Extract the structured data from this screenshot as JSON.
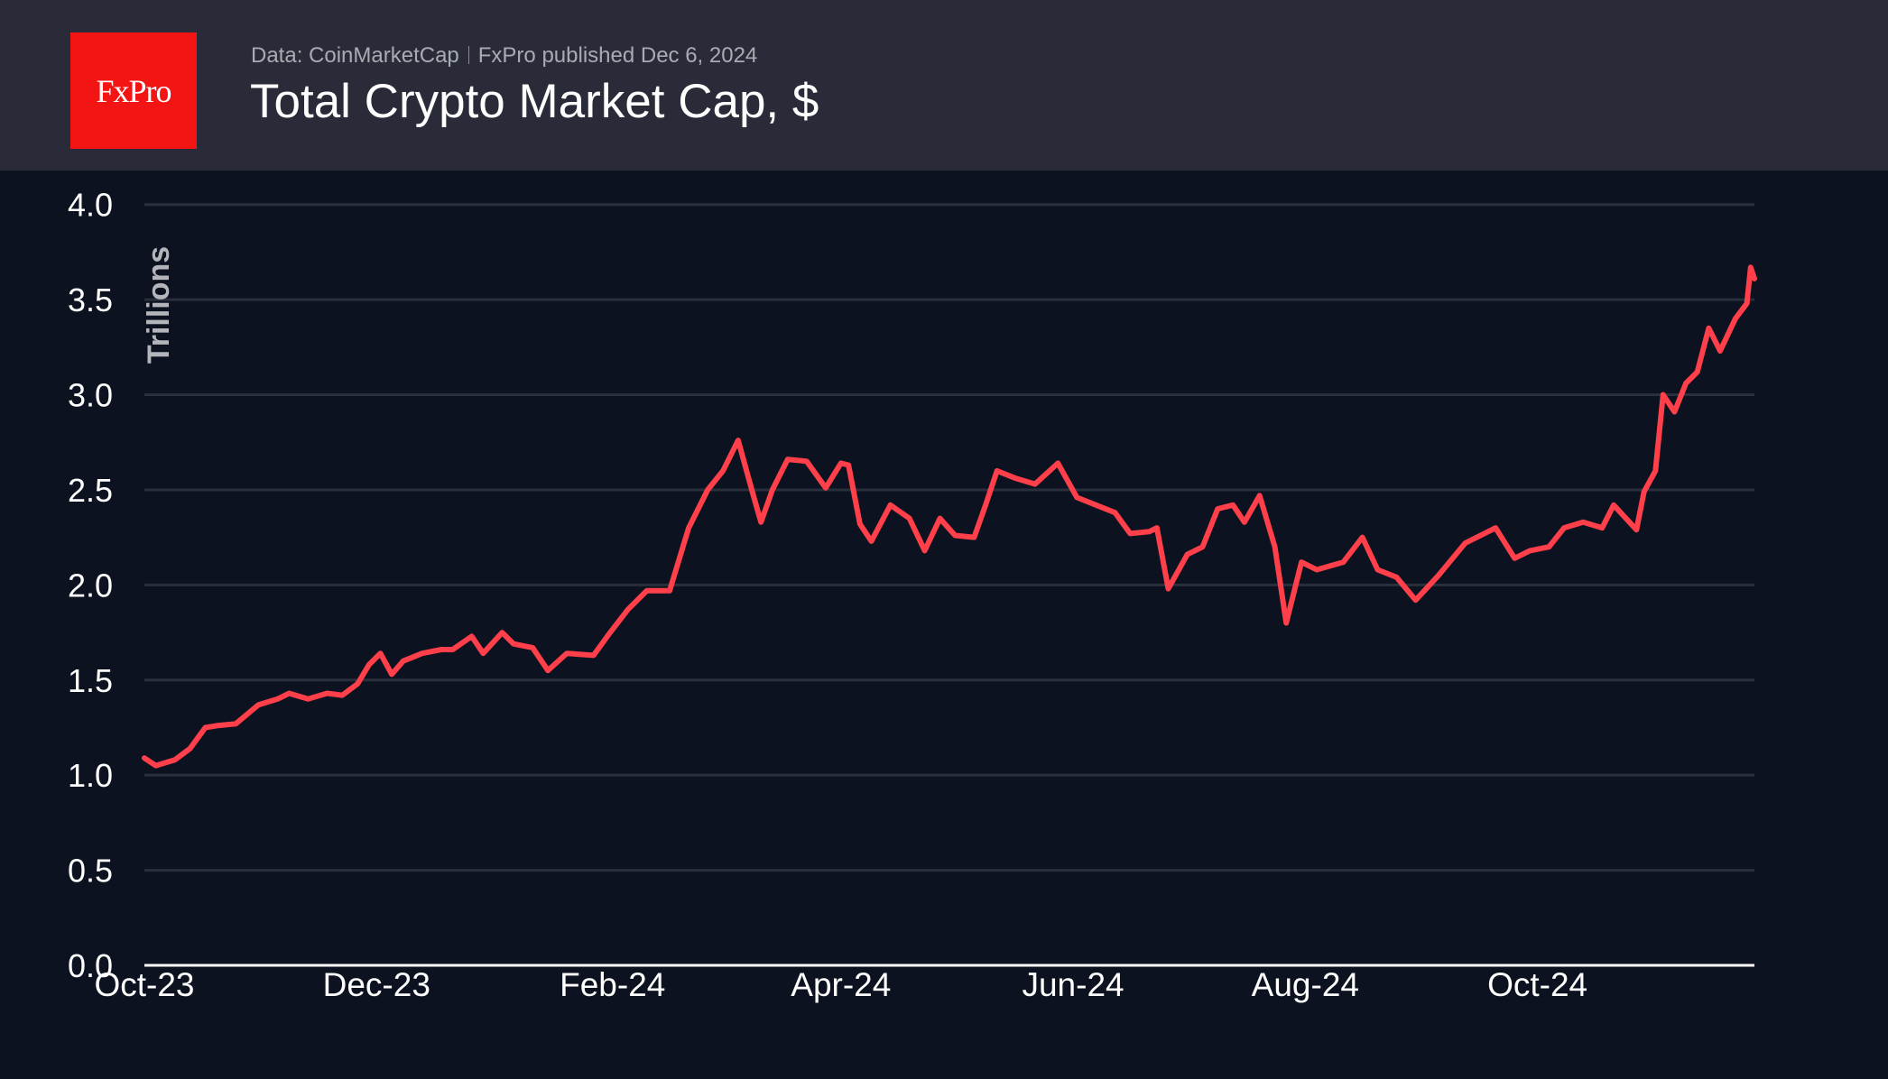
{
  "header": {
    "logo": "FxPro",
    "source": "Data: CoinMarketCap",
    "publisher": "FxPro published Dec 6, 2024",
    "title": "Total Crypto Market Cap, $"
  },
  "colors": {
    "line": "#ff3f4a",
    "background": "#0c1220",
    "header": "#292c38",
    "grid": "#2a2f3c",
    "logo": "#f31414"
  },
  "chart_data": {
    "type": "line",
    "title": "Total Crypto Market Cap, $",
    "ylabel": "Trillions",
    "xlabel": "",
    "ylim": [
      0,
      4
    ],
    "yticks": [
      "0.0",
      "0.5",
      "1.0",
      "1.5",
      "2.0",
      "2.5",
      "3.0",
      "3.5",
      "4.0"
    ],
    "xticks": [
      {
        "date": "2023-10-01",
        "label": "Oct-23"
      },
      {
        "date": "2023-12-01",
        "label": "Dec-23"
      },
      {
        "date": "2024-02-01",
        "label": "Feb-24"
      },
      {
        "date": "2024-04-01",
        "label": "Apr-24"
      },
      {
        "date": "2024-06-01",
        "label": "Jun-24"
      },
      {
        "date": "2024-08-01",
        "label": "Aug-24"
      },
      {
        "date": "2024-10-01",
        "label": "Oct-24"
      }
    ],
    "grid": true,
    "x": [
      "2023-10-01",
      "2023-10-04",
      "2023-10-09",
      "2023-10-13",
      "2023-10-17",
      "2023-10-20",
      "2023-10-25",
      "2023-10-31",
      "2023-11-05",
      "2023-11-08",
      "2023-11-13",
      "2023-11-18",
      "2023-11-22",
      "2023-11-26",
      "2023-11-29",
      "2023-12-02",
      "2023-12-05",
      "2023-12-08",
      "2023-12-13",
      "2023-12-18",
      "2023-12-21",
      "2023-12-26",
      "2023-12-29",
      "2024-01-03",
      "2024-01-06",
      "2024-01-11",
      "2024-01-15",
      "2024-01-20",
      "2024-01-27",
      "2024-01-31",
      "2024-02-05",
      "2024-02-10",
      "2024-02-16",
      "2024-02-21",
      "2024-02-26",
      "2024-03-01",
      "2024-03-05",
      "2024-03-09",
      "2024-03-11",
      "2024-03-14",
      "2024-03-18",
      "2024-03-23",
      "2024-03-28",
      "2024-04-01",
      "2024-04-03",
      "2024-04-06",
      "2024-04-09",
      "2024-04-14",
      "2024-04-19",
      "2024-04-23",
      "2024-04-27",
      "2024-05-01",
      "2024-05-06",
      "2024-05-09",
      "2024-05-12",
      "2024-05-17",
      "2024-05-22",
      "2024-05-28",
      "2024-06-02",
      "2024-06-07",
      "2024-06-12",
      "2024-06-16",
      "2024-06-21",
      "2024-06-23",
      "2024-06-26",
      "2024-07-01",
      "2024-07-05",
      "2024-07-09",
      "2024-07-13",
      "2024-07-16",
      "2024-07-20",
      "2024-07-24",
      "2024-07-27",
      "2024-07-31",
      "2024-08-04",
      "2024-08-11",
      "2024-08-16",
      "2024-08-20",
      "2024-08-25",
      "2024-08-30",
      "2024-09-05",
      "2024-09-12",
      "2024-09-20",
      "2024-09-25",
      "2024-09-29",
      "2024-10-04",
      "2024-10-08",
      "2024-10-13",
      "2024-10-18",
      "2024-10-21",
      "2024-10-27",
      "2024-10-29",
      "2024-11-01",
      "2024-11-03",
      "2024-11-06",
      "2024-11-09",
      "2024-11-12",
      "2024-11-15",
      "2024-11-18",
      "2024-11-22",
      "2024-11-25",
      "2024-11-26",
      "2024-11-27"
    ],
    "values": [
      1.09,
      1.05,
      1.08,
      1.14,
      1.25,
      1.26,
      1.27,
      1.37,
      1.4,
      1.43,
      1.4,
      1.43,
      1.42,
      1.48,
      1.58,
      1.64,
      1.53,
      1.6,
      1.64,
      1.66,
      1.66,
      1.73,
      1.64,
      1.75,
      1.69,
      1.67,
      1.55,
      1.64,
      1.63,
      1.74,
      1.87,
      1.97,
      1.97,
      2.3,
      2.5,
      2.6,
      2.76,
      2.47,
      2.33,
      2.5,
      2.66,
      2.65,
      2.51,
      2.64,
      2.63,
      2.32,
      2.23,
      2.42,
      2.35,
      2.18,
      2.35,
      2.26,
      2.25,
      2.42,
      2.6,
      2.56,
      2.53,
      2.64,
      2.46,
      2.42,
      2.38,
      2.27,
      2.28,
      2.3,
      1.98,
      2.16,
      2.2,
      2.4,
      2.42,
      2.33,
      2.47,
      2.2,
      1.8,
      2.12,
      2.08,
      2.12,
      2.25,
      2.08,
      2.04,
      1.92,
      2.05,
      2.22,
      2.3,
      2.14,
      2.18,
      2.2,
      2.3,
      2.33,
      2.3,
      2.42,
      2.29,
      2.49,
      2.6,
      3.0,
      2.91,
      3.06,
      3.12,
      3.35,
      3.23,
      3.4,
      3.48,
      3.67,
      3.61
    ]
  }
}
